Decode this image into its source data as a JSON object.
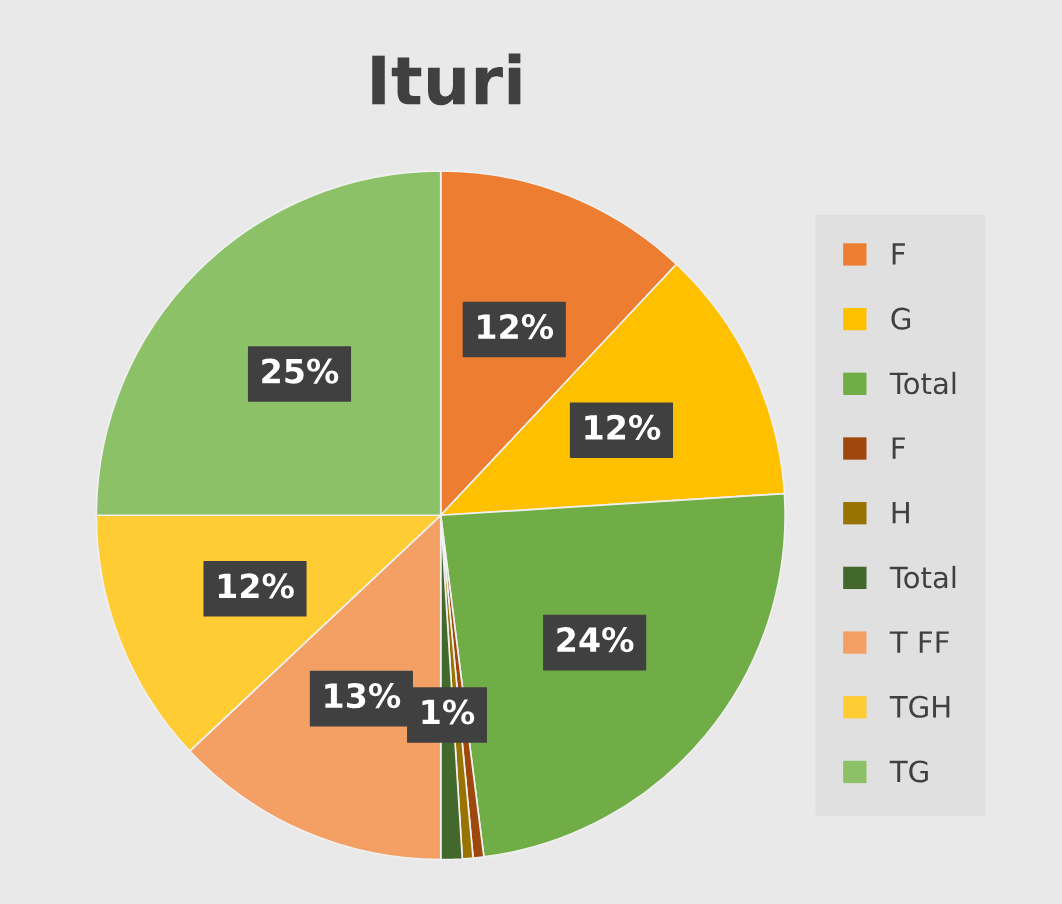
{
  "chart_data": {
    "type": "pie",
    "title": "Ituri",
    "categories": [
      "F",
      "G",
      "Total",
      "F",
      "H",
      "Total",
      "T FF",
      "TGH",
      "TG"
    ],
    "values": [
      12,
      12,
      24,
      0.5,
      0.5,
      1,
      13,
      12,
      25
    ],
    "colors": [
      "#ed7d31",
      "#ffc000",
      "#70ad47",
      "#9e480e",
      "#997300",
      "#43682b",
      "#f4a064",
      "#ffcd33",
      "#8cc168"
    ],
    "value_labels": [
      "12%",
      "12%",
      "24%",
      null,
      null,
      "1%",
      "13%",
      "12%",
      "25%"
    ],
    "legend": "right"
  }
}
